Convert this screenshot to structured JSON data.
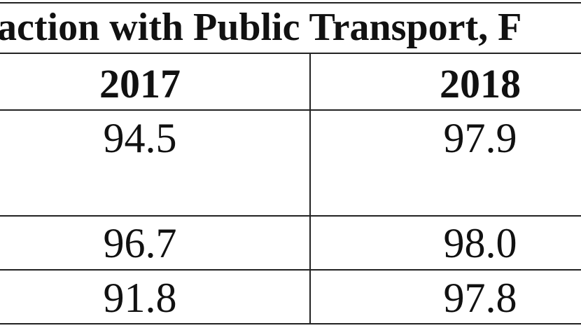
{
  "table": {
    "title": "action with Public Transport, F",
    "header": [
      "2017",
      "2018"
    ],
    "rows": [
      [
        "94.5",
        "97.9"
      ],
      [
        "96.7",
        "98.0"
      ],
      [
        "91.8",
        "97.8"
      ]
    ]
  }
}
